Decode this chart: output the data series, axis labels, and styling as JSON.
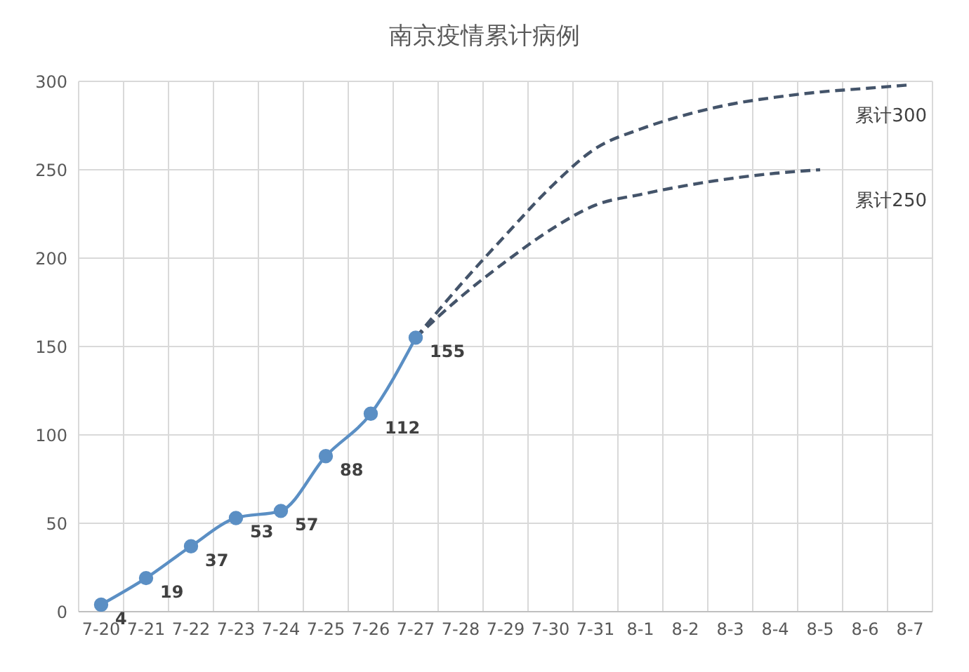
{
  "chart_data": {
    "type": "line",
    "title": "南京疫情累计病例",
    "categories": [
      "7-20",
      "7-21",
      "7-22",
      "7-23",
      "7-24",
      "7-25",
      "7-26",
      "7-27",
      "7-28",
      "7-29",
      "7-30",
      "7-31",
      "8-1",
      "8-2",
      "8-3",
      "8-4",
      "8-5",
      "8-6",
      "8-7"
    ],
    "series": [
      {
        "color": "#5b8fc4",
        "marker": "circle",
        "line_style": "solid",
        "values": [
          4,
          19,
          37,
          53,
          57,
          88,
          112,
          155,
          null,
          null,
          null,
          null,
          null,
          null,
          null,
          null,
          null,
          null,
          null
        ],
        "value_labels": [
          "4",
          "19",
          "37",
          "53",
          "57",
          "88",
          "112",
          "155",
          null,
          null,
          null,
          null,
          null,
          null,
          null,
          null,
          null,
          null,
          null
        ]
      },
      {
        "name": "累计300",
        "color": "#44546a",
        "marker": "none",
        "line_style": "dashed",
        "values": [
          null,
          null,
          null,
          null,
          null,
          null,
          null,
          155,
          185,
          213,
          240,
          262,
          273,
          281,
          287,
          291,
          294,
          296,
          298
        ]
      },
      {
        "name": "累计250",
        "color": "#44546a",
        "marker": "none",
        "line_style": "dashed",
        "values": [
          null,
          null,
          null,
          null,
          null,
          null,
          null,
          155,
          178,
          198,
          216,
          230,
          236,
          241,
          245,
          248,
          250,
          null,
          null
        ]
      }
    ],
    "ylim": [
      0,
      300
    ],
    "yticks": [
      0,
      50,
      100,
      150,
      200,
      250,
      300
    ],
    "grid": true
  }
}
